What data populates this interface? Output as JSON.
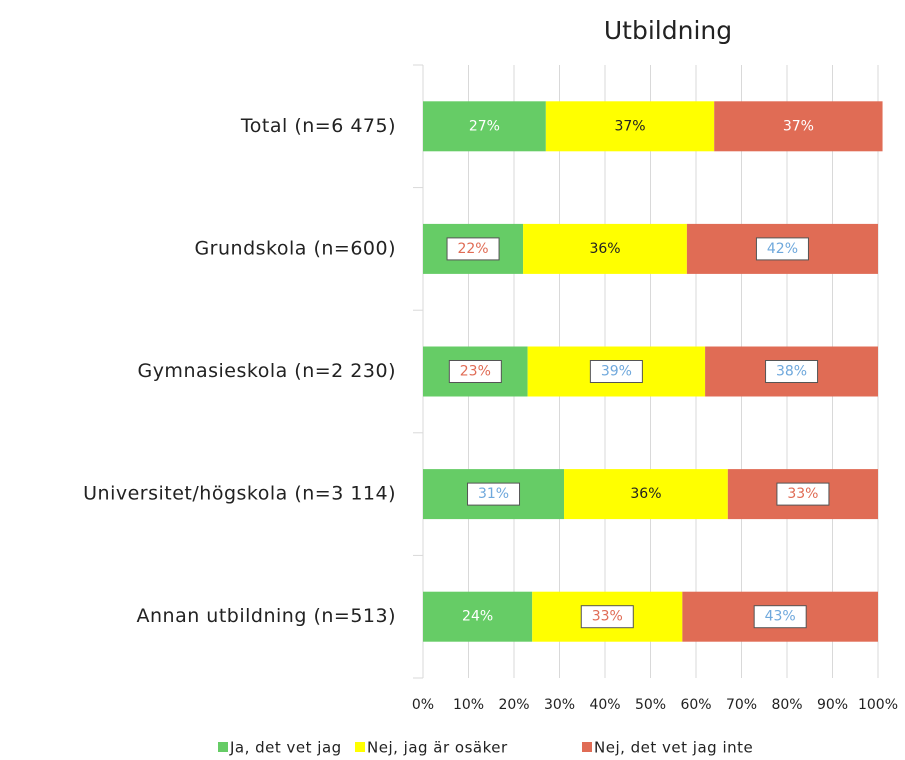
{
  "chart_data": {
    "type": "stacked_barh",
    "title": "Utbildning",
    "categories": [
      "Total (n=6 475)",
      "Grundskola (n=600)",
      "Gymnasieskola (n=2 230)",
      "Universitet/högskola (n=3 114)",
      "Annan utbildning (n=513)"
    ],
    "series": [
      {
        "name": "Ja, det vet jag",
        "color": "#66cc66",
        "values": [
          27,
          22,
          23,
          31,
          24
        ],
        "value_labels": [
          "27%",
          "22%",
          "23%",
          "31%",
          "24%"
        ]
      },
      {
        "name": "Nej, jag är osäker",
        "color": "#ffff00",
        "values": [
          37,
          36,
          39,
          36,
          33
        ],
        "value_labels": [
          "37%",
          "36%",
          "39%",
          "36%",
          "33%"
        ]
      },
      {
        "name": "Nej, det vet jag inte",
        "color": "#e06c55",
        "values": [
          37,
          42,
          38,
          33,
          43
        ],
        "value_labels": [
          "37%",
          "42%",
          "38%",
          "33%",
          "43%"
        ]
      }
    ],
    "xlim": [
      0,
      100
    ],
    "xticks": [
      {
        "value": 0,
        "label": "0%"
      },
      {
        "value": 10,
        "label": "10%"
      },
      {
        "value": 20,
        "label": "20%"
      },
      {
        "value": 30,
        "label": "30%"
      },
      {
        "value": 40,
        "label": "40%"
      },
      {
        "value": 50,
        "label": "50%"
      },
      {
        "value": 60,
        "label": "60%"
      },
      {
        "value": 70,
        "label": "70%"
      },
      {
        "value": 80,
        "label": "80%"
      },
      {
        "value": 90,
        "label": "90%"
      },
      {
        "value": 100,
        "label": "100%"
      }
    ],
    "grid": true,
    "legend": "bottom"
  }
}
